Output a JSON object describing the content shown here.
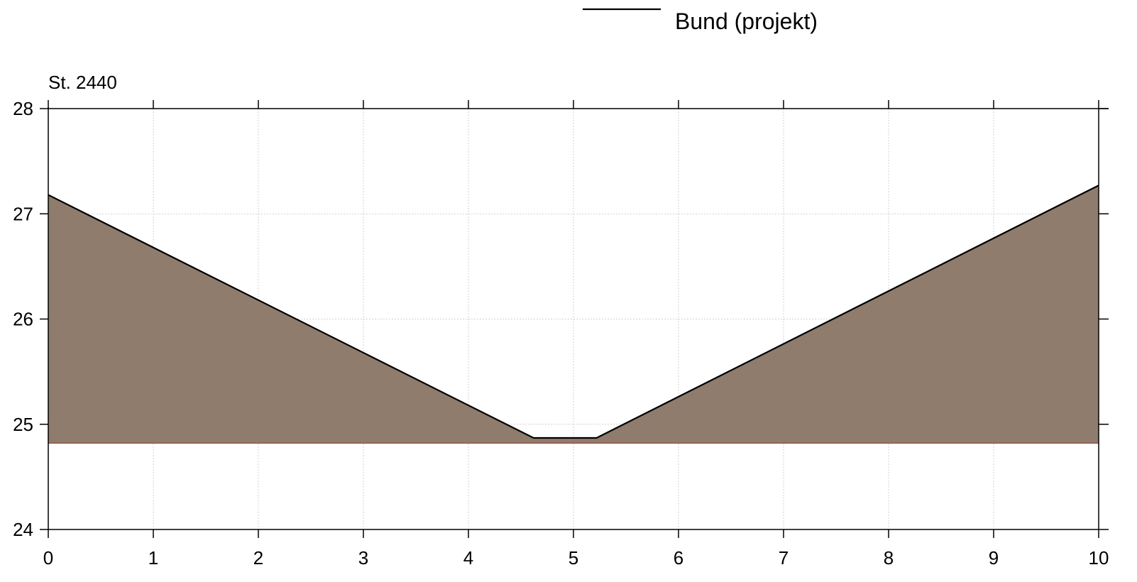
{
  "chart_data": {
    "type": "area",
    "title": "St. 2440",
    "xlabel": "",
    "ylabel": "",
    "xlim": [
      0,
      10
    ],
    "ylim": [
      24,
      28
    ],
    "xticks": [
      0,
      1,
      2,
      3,
      4,
      5,
      6,
      7,
      8,
      9,
      10
    ],
    "yticks": [
      24,
      25,
      26,
      27,
      28
    ],
    "grid": true,
    "legend_position": "top-center",
    "series": [
      {
        "name": "Bund (projekt)",
        "color": "#000000",
        "x": [
          0,
          4.62,
          5.22,
          10
        ],
        "y": [
          27.18,
          24.87,
          24.87,
          27.27
        ]
      }
    ],
    "fill": {
      "base_y": 24.82,
      "color": "#8f7c6c",
      "edge_color": "#a0504a"
    }
  }
}
